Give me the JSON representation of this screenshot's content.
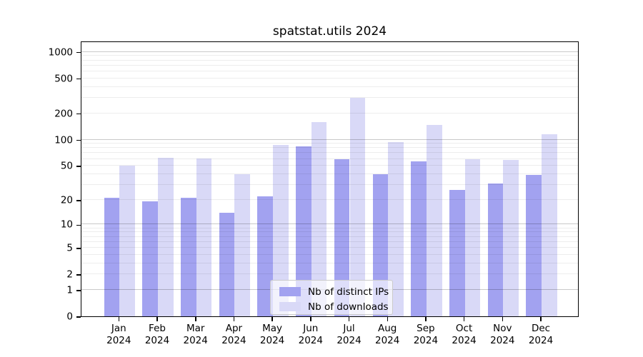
{
  "title": "spatstat.utils 2024",
  "chart_data": {
    "type": "bar",
    "title": "spatstat.utils 2024",
    "categories": [
      "Jan 2024",
      "Feb 2024",
      "Mar 2024",
      "Apr 2024",
      "May 2024",
      "Jun 2024",
      "Jul 2024",
      "Aug 2024",
      "Sep 2024",
      "Oct 2024",
      "Nov 2024",
      "Dec 2024"
    ],
    "months": [
      "Jan",
      "Feb",
      "Mar",
      "Apr",
      "May",
      "Jun",
      "Jul",
      "Aug",
      "Sep",
      "Oct",
      "Nov",
      "Dec"
    ],
    "year": "2024",
    "series": [
      {
        "name": "Nb of distinct IPs",
        "color": "#a2a2f0",
        "values": [
          21,
          19,
          21,
          14,
          22,
          84,
          60,
          40,
          56,
          26,
          31,
          39
        ]
      },
      {
        "name": "Nb of downloads",
        "color": "#d9d9f7",
        "values": [
          50,
          62,
          61,
          40,
          87,
          160,
          300,
          93,
          147,
          60,
          58,
          115
        ]
      }
    ],
    "yscale": "log1p",
    "ylim": [
      0,
      1336
    ],
    "xlabel": "",
    "ylabel": "",
    "y_ticks_labeled": [
      0,
      1,
      2,
      5,
      10,
      20,
      50,
      100,
      200,
      500,
      1000
    ],
    "y_gridlines_major": [
      1,
      10,
      100,
      1000
    ],
    "y_gridlines_minor": [
      2,
      3,
      4,
      5,
      6,
      7,
      8,
      9,
      20,
      30,
      40,
      50,
      60,
      70,
      80,
      90,
      200,
      300,
      400,
      500,
      600,
      700,
      800,
      900
    ],
    "grid": true,
    "legend_position": "lower center"
  }
}
